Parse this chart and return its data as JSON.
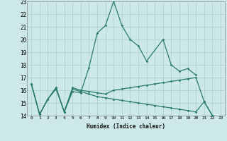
{
  "xlabel": "Humidex (Indice chaleur)",
  "x": [
    0,
    1,
    2,
    3,
    4,
    5,
    6,
    7,
    8,
    9,
    10,
    11,
    12,
    13,
    14,
    15,
    16,
    17,
    18,
    19,
    20,
    21,
    22,
    23
  ],
  "line1": [
    16.5,
    14.1,
    15.3,
    16.1,
    14.3,
    15.9,
    15.8,
    17.8,
    20.5,
    21.1,
    23.0,
    21.1,
    20.0,
    19.5,
    18.3,
    null,
    20.0,
    18.0,
    17.5,
    17.7,
    17.2,
    null,
    null,
    null
  ],
  "line2": [
    16.5,
    14.1,
    15.3,
    16.2,
    14.3,
    16.2,
    16.0,
    15.9,
    15.8,
    15.7,
    16.0,
    16.1,
    16.2,
    16.3,
    16.4,
    16.5,
    16.6,
    16.7,
    16.8,
    16.9,
    17.0,
    15.1,
    14.0,
    13.9
  ],
  "line3": [
    16.5,
    14.1,
    15.3,
    16.2,
    14.3,
    16.1,
    15.9,
    15.7,
    15.5,
    15.4,
    15.3,
    15.2,
    15.1,
    15.0,
    14.9,
    14.8,
    14.7,
    14.6,
    14.5,
    14.4,
    14.3,
    15.1,
    14.0,
    13.9
  ],
  "line_color": "#2a7b6a",
  "bg_color": "#cce8e8",
  "grid_color": "#aacece",
  "ylim": [
    14,
    23
  ],
  "yticks": [
    14,
    15,
    16,
    17,
    18,
    19,
    20,
    21,
    22,
    23
  ],
  "xticks": [
    0,
    1,
    2,
    3,
    4,
    5,
    6,
    7,
    8,
    9,
    10,
    11,
    12,
    13,
    14,
    15,
    16,
    17,
    18,
    19,
    20,
    21,
    22,
    23
  ]
}
